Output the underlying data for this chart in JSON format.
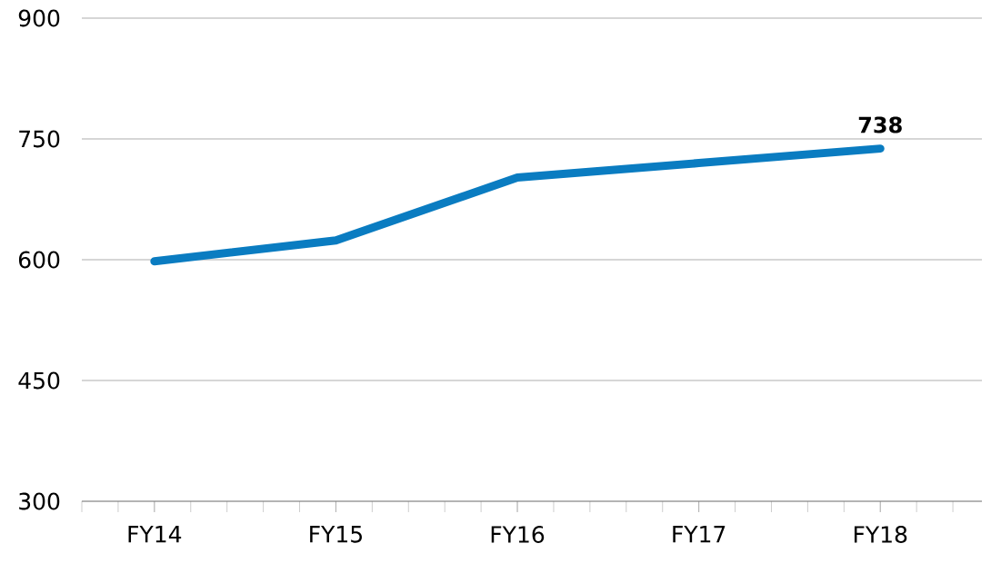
{
  "chart_data": {
    "type": "line",
    "categories": [
      "FY14",
      "FY15",
      "FY16",
      "FY17",
      "FY18"
    ],
    "series": [
      {
        "color": "#0a7cc1",
        "values": [
          598,
          624,
          702,
          720,
          738
        ],
        "value_labels": [
          null,
          null,
          null,
          null,
          "738"
        ]
      }
    ],
    "ylim": [
      300,
      900
    ],
    "yticks": [
      300,
      450,
      600,
      750,
      900
    ],
    "grid": "y",
    "marker": "none",
    "line_style": "solid"
  }
}
